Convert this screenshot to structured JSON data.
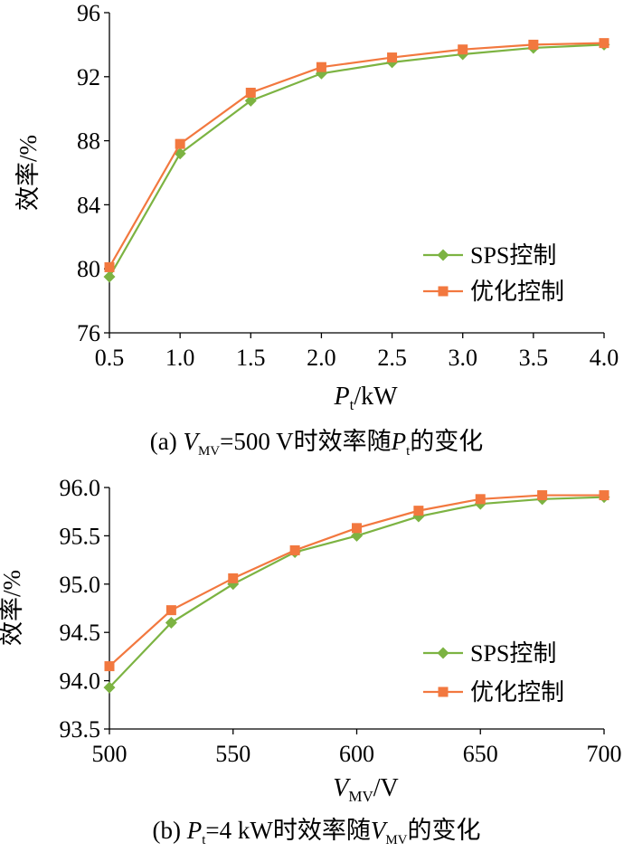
{
  "chart_data": [
    {
      "type": "line",
      "caption": {
        "prefix": "(a)",
        "v": "V",
        "v_sub": "MV",
        "mid": "=500 V时效率随",
        "p": "P",
        "p_sub": "t",
        "suffix": "的变化"
      },
      "xlabel": {
        "main": "P",
        "sub": "t",
        "unit": "/kW"
      },
      "ylabel": "效率/%",
      "x": [
        0.5,
        1.0,
        1.5,
        2.0,
        2.5,
        3.0,
        3.5,
        4.0
      ],
      "xticks": [
        "0.5",
        "1.0",
        "1.5",
        "2.0",
        "2.5",
        "3.0",
        "3.5",
        "4.0"
      ],
      "yticks": [
        "76",
        "80",
        "84",
        "88",
        "92",
        "96"
      ],
      "xlim": [
        0.5,
        4.0
      ],
      "ylim": [
        76,
        96
      ],
      "series": [
        {
          "name": "SPS控制",
          "color": "#7cb342",
          "marker": "diamond",
          "values": [
            79.5,
            87.2,
            90.5,
            92.2,
            92.9,
            93.4,
            93.8,
            94.0
          ]
        },
        {
          "name": "优化控制",
          "color": "#f2783f",
          "marker": "square",
          "values": [
            80.1,
            87.8,
            91.0,
            92.6,
            93.2,
            93.7,
            94.0,
            94.1
          ]
        }
      ],
      "legend": "lower-right"
    },
    {
      "type": "line",
      "caption": {
        "prefix": "(b)",
        "p": "P",
        "p_sub": "t",
        "mid": "=4 kW时效率随",
        "v": "V",
        "v_sub": "MV",
        "suffix": "的变化"
      },
      "xlabel": {
        "main": "V",
        "sub": "MV",
        "unit": "/V"
      },
      "ylabel": "效率/%",
      "x": [
        500,
        525,
        550,
        575,
        600,
        625,
        650,
        675,
        700
      ],
      "xticks": [
        "500",
        "550",
        "600",
        "650",
        "700"
      ],
      "yticks": [
        "93.5",
        "94.0",
        "94.5",
        "95.0",
        "95.5",
        "96.0"
      ],
      "xlim": [
        500,
        700
      ],
      "ylim": [
        93.5,
        96.0
      ],
      "series": [
        {
          "name": "SPS控制",
          "color": "#7cb342",
          "marker": "diamond",
          "values": [
            93.93,
            94.6,
            95.0,
            95.33,
            95.5,
            95.7,
            95.83,
            95.88,
            95.9
          ]
        },
        {
          "name": "优化控制",
          "color": "#f2783f",
          "marker": "square",
          "values": [
            94.15,
            94.73,
            95.06,
            95.35,
            95.58,
            95.76,
            95.88,
            95.92,
            95.92
          ]
        }
      ],
      "legend": "lower-right"
    }
  ]
}
